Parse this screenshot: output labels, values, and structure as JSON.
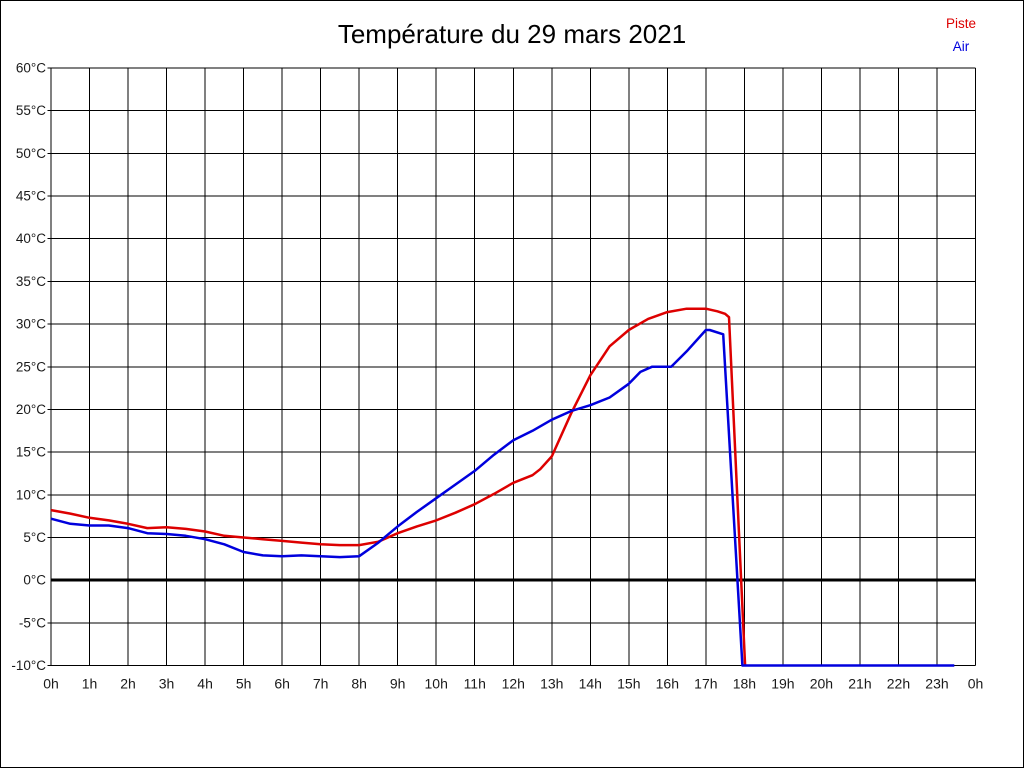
{
  "chart_data": {
    "type": "line",
    "title": "Température du 29 mars 2021",
    "xlim": [
      0,
      24
    ],
    "ylim": [
      -10,
      60
    ],
    "y_step": 5,
    "grid": true,
    "zero_line_bold": true,
    "legend_position": "top-right",
    "axis_color": "#000000",
    "label_color": "#1a1a1a",
    "x_tick_labels": [
      "0h",
      "1h",
      "2h",
      "3h",
      "4h",
      "5h",
      "6h",
      "7h",
      "8h",
      "9h",
      "10h",
      "11h",
      "12h",
      "13h",
      "14h",
      "15h",
      "16h",
      "17h",
      "18h",
      "19h",
      "20h",
      "21h",
      "22h",
      "23h",
      "0h"
    ],
    "y_tick_labels": [
      "-10°C",
      "-5°C",
      "0°C",
      "5°C",
      "10°C",
      "15°C",
      "20°C",
      "25°C",
      "30°C",
      "35°C",
      "40°C",
      "45°C",
      "50°C",
      "55°C",
      "60°C"
    ],
    "series": [
      {
        "name": "Piste",
        "color": "#dd0000",
        "points": [
          [
            0,
            8.2
          ],
          [
            0.5,
            7.8
          ],
          [
            1,
            7.3
          ],
          [
            1.5,
            7.0
          ],
          [
            2,
            6.6
          ],
          [
            2.5,
            6.1
          ],
          [
            3,
            6.2
          ],
          [
            3.5,
            6.0
          ],
          [
            4,
            5.7
          ],
          [
            4.5,
            5.2
          ],
          [
            5,
            5.0
          ],
          [
            5.5,
            4.8
          ],
          [
            6,
            4.6
          ],
          [
            6.5,
            4.4
          ],
          [
            7,
            4.2
          ],
          [
            7.5,
            4.1
          ],
          [
            8,
            4.1
          ],
          [
            8.5,
            4.5
          ],
          [
            9,
            5.5
          ],
          [
            9.5,
            6.3
          ],
          [
            10,
            7.0
          ],
          [
            10.5,
            7.9
          ],
          [
            11,
            8.9
          ],
          [
            11.5,
            10.1
          ],
          [
            12,
            11.4
          ],
          [
            12.5,
            12.3
          ],
          [
            12.7,
            13.0
          ],
          [
            13,
            14.5
          ],
          [
            13.5,
            19.5
          ],
          [
            14,
            24.0
          ],
          [
            14.5,
            27.4
          ],
          [
            15,
            29.3
          ],
          [
            15.5,
            30.6
          ],
          [
            16,
            31.4
          ],
          [
            16.5,
            31.8
          ],
          [
            17,
            31.8
          ],
          [
            17.3,
            31.5
          ],
          [
            17.5,
            31.2
          ],
          [
            17.6,
            30.8
          ],
          [
            18.02,
            -10
          ]
        ]
      },
      {
        "name": "Air",
        "color": "#0000dd",
        "points": [
          [
            0,
            7.2
          ],
          [
            0.5,
            6.6
          ],
          [
            1,
            6.4
          ],
          [
            1.5,
            6.4
          ],
          [
            2,
            6.1
          ],
          [
            2.5,
            5.5
          ],
          [
            3,
            5.4
          ],
          [
            3.5,
            5.2
          ],
          [
            4,
            4.8
          ],
          [
            4.5,
            4.2
          ],
          [
            5,
            3.3
          ],
          [
            5.5,
            2.9
          ],
          [
            6,
            2.8
          ],
          [
            6.5,
            2.9
          ],
          [
            7,
            2.8
          ],
          [
            7.5,
            2.7
          ],
          [
            8,
            2.8
          ],
          [
            8.5,
            4.4
          ],
          [
            9,
            6.3
          ],
          [
            9.5,
            8.0
          ],
          [
            10,
            9.6
          ],
          [
            10.5,
            11.2
          ],
          [
            11,
            12.8
          ],
          [
            11.5,
            14.7
          ],
          [
            12,
            16.4
          ],
          [
            12.5,
            17.5
          ],
          [
            13,
            18.8
          ],
          [
            13.5,
            19.8
          ],
          [
            14,
            20.5
          ],
          [
            14.5,
            21.4
          ],
          [
            15,
            23.0
          ],
          [
            15.3,
            24.4
          ],
          [
            15.6,
            25.0
          ],
          [
            16.1,
            25.0
          ],
          [
            16.5,
            26.8
          ],
          [
            17,
            29.3
          ],
          [
            17.1,
            29.3
          ],
          [
            17.45,
            28.8
          ],
          [
            17.95,
            -10
          ],
          [
            23.45,
            -10
          ]
        ]
      }
    ]
  }
}
